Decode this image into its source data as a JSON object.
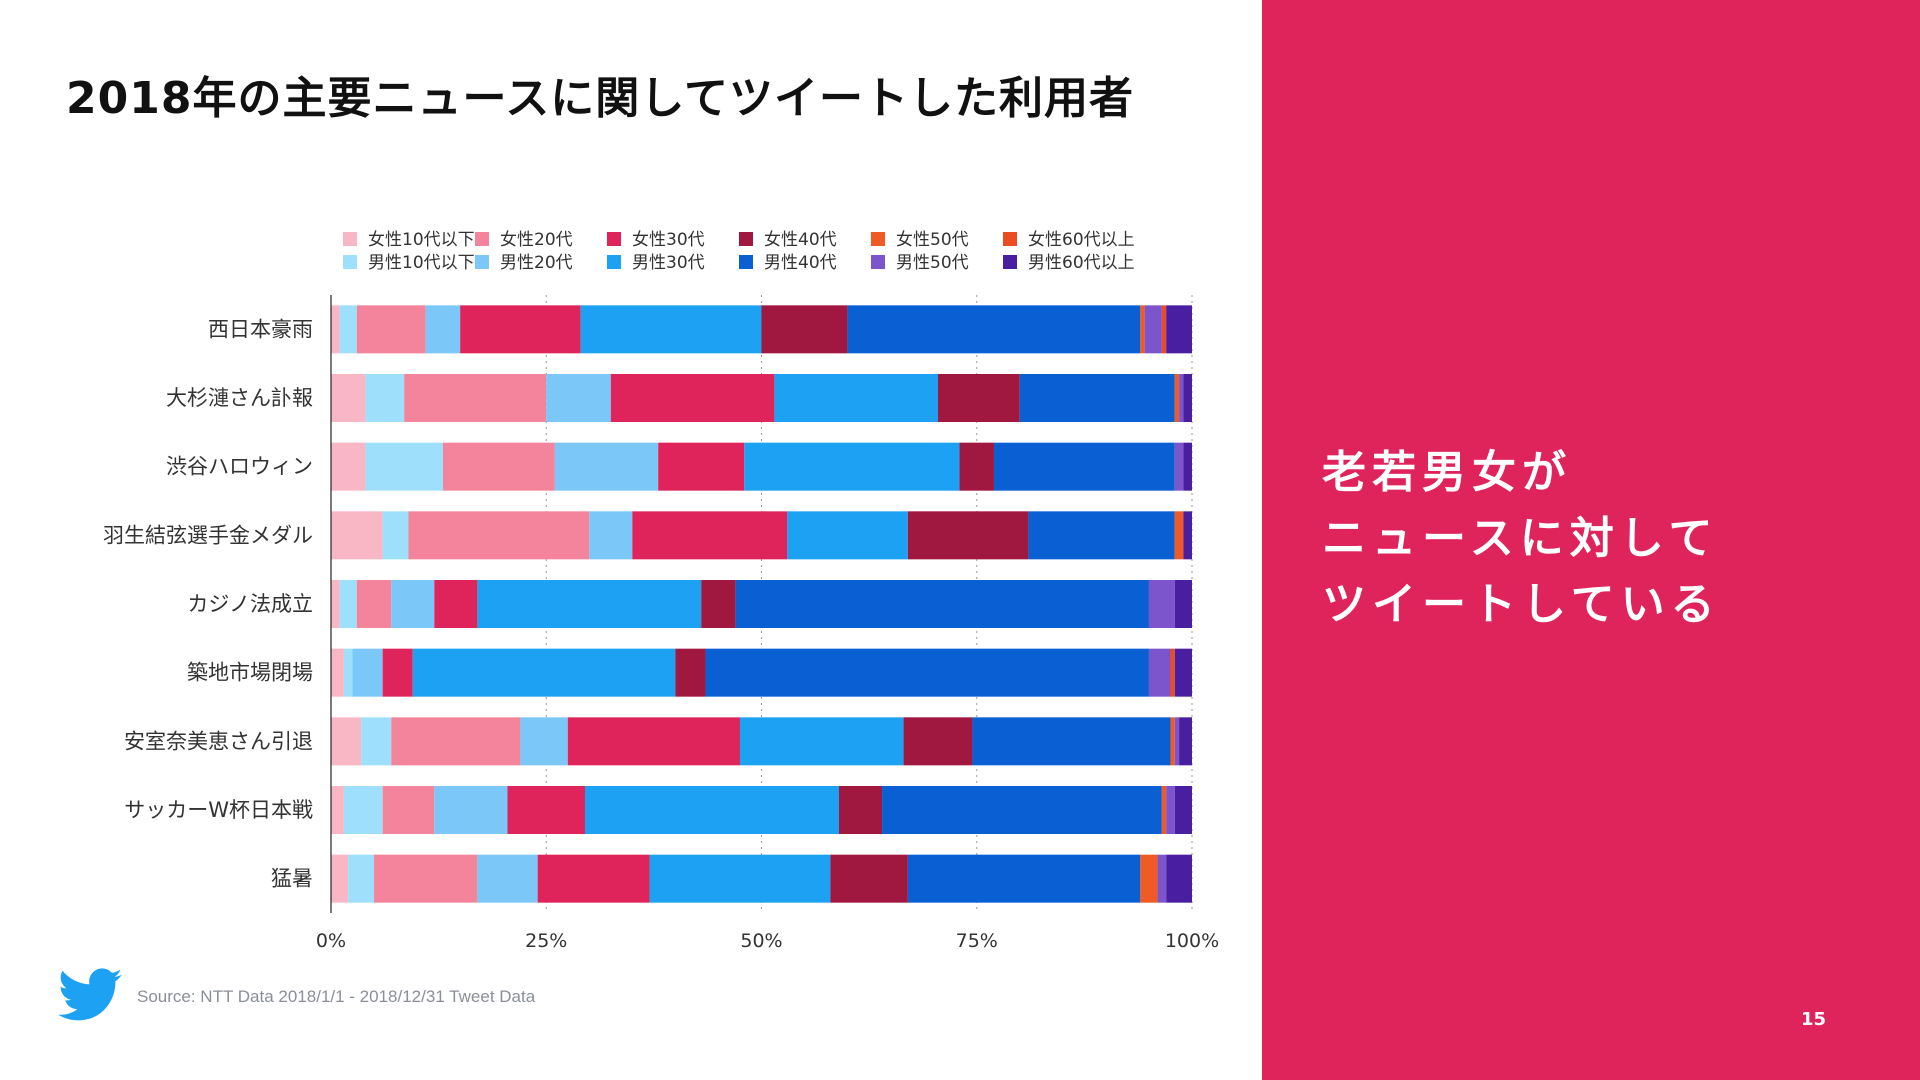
{
  "page": {
    "title": "2018年の主要ニュースに関してツイートした利用者",
    "message_lines": [
      "老若男女が",
      "ニュースに対して",
      "ツイートしている"
    ],
    "source": "Source: NTT Data 2018/1/1 - 2018/12/31 Tweet Data",
    "page_number": "15",
    "accent_color": "#df245c",
    "logo_icon": "twitter-bird-icon"
  },
  "chart_data": {
    "type": "bar",
    "orientation": "horizontal",
    "stacked": true,
    "normalized": true,
    "title": "",
    "xlabel": "",
    "ylabel": "",
    "xlim": [
      0,
      100
    ],
    "x_ticks": [
      "0%",
      "25%",
      "50%",
      "75%",
      "100%"
    ],
    "grid": "vertical-dotted",
    "legend_position": "top",
    "categories": [
      "西日本豪雨",
      "大杉漣さん訃報",
      "渋谷ハロウィン",
      "羽生結弦選手金メダル",
      "カジノ法成立",
      "築地市場閉場",
      "安室奈美恵さん引退",
      "サッカーW杯日本戦",
      "猛暑"
    ],
    "series": [
      {
        "name": "女性10代以下",
        "color": "#f9b7c6",
        "values": [
          1.0,
          4.0,
          4.0,
          6.0,
          1.0,
          1.5,
          3.5,
          1.5,
          2.0
        ]
      },
      {
        "name": "男性10代以下",
        "color": "#9ee0fb",
        "values": [
          2.0,
          4.5,
          9.0,
          3.0,
          2.0,
          1.0,
          3.5,
          4.5,
          3.0
        ]
      },
      {
        "name": "女性20代",
        "color": "#f3849b",
        "values": [
          8.0,
          16.5,
          13.0,
          21.0,
          4.0,
          0.0,
          15.0,
          6.0,
          12.0
        ]
      },
      {
        "name": "男性20代",
        "color": "#7bc8f8",
        "values": [
          4.0,
          7.5,
          12.0,
          5.0,
          5.0,
          3.5,
          5.5,
          8.5,
          7.0
        ]
      },
      {
        "name": "女性30代",
        "color": "#df245c",
        "values": [
          14.0,
          19.0,
          10.0,
          18.0,
          5.0,
          3.5,
          20.0,
          9.0,
          13.0
        ]
      },
      {
        "name": "男性30代",
        "color": "#1da1f2",
        "values": [
          21.0,
          19.0,
          25.0,
          14.0,
          26.0,
          30.5,
          19.0,
          29.5,
          21.0
        ]
      },
      {
        "name": "女性40代",
        "color": "#a0173f",
        "values": [
          10.0,
          9.5,
          4.0,
          14.0,
          4.0,
          3.5,
          8.0,
          5.0,
          9.0
        ]
      },
      {
        "name": "男性40代",
        "color": "#0a60d3",
        "values": [
          34.0,
          18.0,
          21.0,
          17.0,
          48.0,
          51.5,
          23.0,
          32.5,
          27.0
        ]
      },
      {
        "name": "女性50代",
        "color": "#ef5a25",
        "values": [
          0.5,
          0.5,
          0.0,
          1.0,
          0.0,
          0.0,
          0.5,
          0.5,
          2.0
        ]
      },
      {
        "name": "男性50代",
        "color": "#7c55cc",
        "values": [
          2.0,
          0.5,
          1.0,
          0.0,
          3.0,
          2.5,
          0.5,
          1.0,
          1.0
        ]
      },
      {
        "name": "女性60代以上",
        "color": "#ea4d22",
        "values": [
          0.5,
          0.0,
          0.0,
          0.0,
          0.0,
          0.5,
          0.0,
          0.0,
          0.0
        ]
      },
      {
        "name": "男性60代以上",
        "color": "#4a1ea0",
        "values": [
          3.0,
          1.0,
          1.0,
          1.0,
          2.0,
          2.0,
          1.5,
          2.0,
          3.0
        ]
      }
    ]
  }
}
